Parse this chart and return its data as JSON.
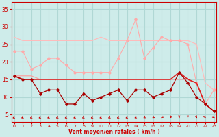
{
  "x": [
    0,
    1,
    2,
    3,
    4,
    5,
    6,
    7,
    8,
    9,
    10,
    11,
    12,
    13,
    14,
    15,
    16,
    17,
    18,
    19,
    20,
    21,
    22,
    23
  ],
  "line_light_upper": [
    27,
    26,
    26,
    26,
    26,
    26,
    26,
    26,
    26,
    26,
    27,
    26,
    26,
    26,
    26,
    26,
    26,
    26,
    26,
    26,
    26,
    25,
    14,
    12
  ],
  "line_light_mid": [
    23,
    23,
    18,
    19,
    21,
    21,
    19,
    17,
    17,
    17,
    17,
    17,
    21,
    26,
    32,
    21,
    24,
    27,
    26,
    26,
    25,
    14,
    8,
    12
  ],
  "line_light_lower": [
    16,
    16,
    16,
    15,
    15,
    15,
    15,
    15,
    15,
    15,
    15,
    15,
    15,
    15,
    15,
    15,
    15,
    15,
    15,
    15,
    15,
    14,
    8,
    6
  ],
  "line_dark_upper": [
    16,
    15,
    15,
    15,
    15,
    15,
    15,
    15,
    15,
    15,
    15,
    15,
    15,
    15,
    15,
    15,
    15,
    15,
    15,
    17,
    15,
    14,
    8,
    6
  ],
  "line_dark_lower": [
    16,
    15,
    15,
    11,
    12,
    12,
    8,
    8,
    11,
    9,
    10,
    11,
    12,
    9,
    12,
    12,
    10,
    11,
    12,
    17,
    14,
    10,
    8,
    6
  ],
  "background": "#ceecea",
  "grid_color": "#b0d8d5",
  "line_light_upper_color": "#ffbbbb",
  "line_light_mid_color": "#ffaaaa",
  "line_light_lower_color": "#ff9999",
  "line_dark_upper_color": "#dd2222",
  "line_dark_lower_color": "#aa0000",
  "text_color": "#cc0000",
  "xlabel": "Vent moyen/en rafales ( km/h )",
  "ylim": [
    3,
    37
  ],
  "yticks": [
    5,
    10,
    15,
    20,
    25,
    30,
    35
  ],
  "xticks": [
    0,
    1,
    2,
    3,
    4,
    5,
    6,
    7,
    8,
    9,
    10,
    11,
    12,
    13,
    14,
    15,
    16,
    17,
    18,
    19,
    20,
    21,
    22,
    23
  ]
}
